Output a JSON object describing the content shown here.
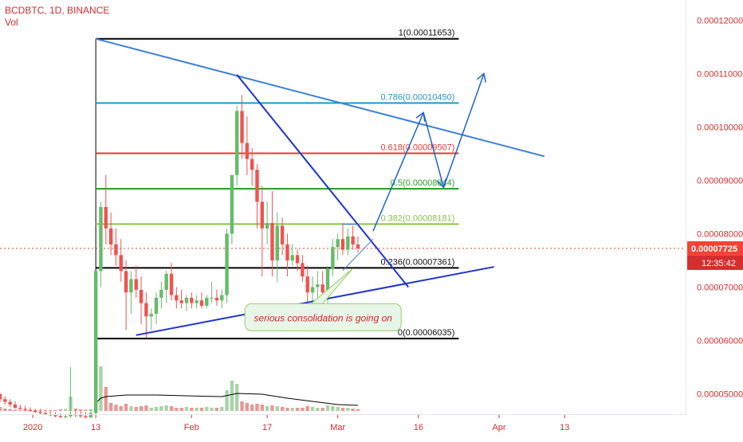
{
  "header": {
    "symbol_line": "BCDBTC, 1D, BINANCE",
    "indicator": "Vol"
  },
  "colors": {
    "up": "#8bc58b",
    "down": "#e57373",
    "upBody": "#66bb6a",
    "downBody": "#ef5350",
    "axisText": "#d32f2f",
    "trend": "#1f34c8",
    "arrow": "#1e64c8",
    "priceBox": "#f44336",
    "timerBox": "#d32f2f"
  },
  "chart_data": {
    "type": "candlestick",
    "title": "BCDBTC, 1D, BINANCE",
    "y_axis": {
      "ticks": [
        "0.00005000",
        "0.00006000",
        "0.00007000",
        "0.00008000",
        "0.00009000",
        "0.00010000",
        "0.00011000",
        "0.00012000"
      ],
      "tick_values": [
        5e-05,
        6e-05,
        7e-05,
        8e-05,
        9e-05,
        0.0001,
        0.00011,
        0.00012
      ],
      "range": [
        4.62e-05,
        0.0001238
      ]
    },
    "x_axis": {
      "ticks": [
        "2020",
        "13",
        "Feb",
        "17",
        "Mar",
        "16",
        "Apr",
        "13"
      ],
      "tick_days": [
        -0.5,
        12,
        31,
        46,
        60,
        76,
        92,
        105
      ],
      "range": [
        -7,
        129
      ]
    },
    "last_price": "0.00007725",
    "countdown": "12:35:42",
    "fib_levels": [
      {
        "label": "1(0.00011653)",
        "value": 0.00011653,
        "color": "#000000"
      },
      {
        "label": "0.786(0.00010450)",
        "value": 0.0001045,
        "color": "#2196c8"
      },
      {
        "label": "0.618(0.00009507)",
        "value": 9.507e-05,
        "color": "#e53935"
      },
      {
        "label": "0.5(0.00008844)",
        "value": 8.844e-05,
        "color": "#2e9e2e"
      },
      {
        "label": "0.382(0.00008181)",
        "value": 8.181e-05,
        "color": "#8bc34a"
      },
      {
        "label": "0.236(0.00007361)",
        "value": 7.361e-05,
        "color": "#000000"
      },
      {
        "label": "0(0.00006035)",
        "value": 6.035e-05,
        "color": "#000000"
      }
    ],
    "annotation": "serious consolidation is going on",
    "candles": [
      [
        -7,
        5.0,
        5.0,
        4.84,
        4.9
      ],
      [
        -6,
        4.9,
        4.95,
        4.8,
        4.85
      ],
      [
        -5,
        4.85,
        4.9,
        4.75,
        4.8
      ],
      [
        -4,
        4.8,
        4.86,
        4.72,
        4.74
      ],
      [
        -3,
        4.74,
        4.8,
        4.7,
        4.72
      ],
      [
        -2,
        4.72,
        4.78,
        4.68,
        4.7
      ],
      [
        -1,
        4.7,
        4.75,
        4.66,
        4.68
      ],
      [
        0,
        4.68,
        4.72,
        4.64,
        4.66
      ],
      [
        1,
        4.66,
        4.72,
        4.62,
        4.64
      ],
      [
        2,
        4.64,
        4.7,
        4.6,
        4.62
      ],
      [
        3,
        4.62,
        4.68,
        4.58,
        4.6
      ],
      [
        4,
        4.6,
        4.66,
        4.56,
        4.58
      ],
      [
        5,
        4.58,
        4.64,
        4.55,
        4.56
      ],
      [
        6,
        4.56,
        4.62,
        4.54,
        4.58
      ],
      [
        7,
        4.58,
        5.5,
        4.55,
        4.62
      ],
      [
        8,
        4.62,
        4.7,
        4.56,
        4.6
      ],
      [
        9,
        4.6,
        4.68,
        4.55,
        4.58
      ],
      [
        10,
        4.58,
        4.66,
        4.54,
        4.56
      ],
      [
        11,
        4.56,
        4.7,
        4.54,
        4.64
      ],
      [
        12,
        4.64,
        7.3,
        4.6,
        7.3
      ],
      [
        13,
        7.3,
        8.6,
        7.0,
        8.5
      ],
      [
        14,
        8.5,
        9.1,
        7.8,
        8.1
      ],
      [
        15,
        8.1,
        8.4,
        7.6,
        7.8
      ],
      [
        16,
        7.8,
        8.1,
        7.4,
        7.6
      ],
      [
        17,
        7.6,
        7.9,
        7.1,
        7.3
      ],
      [
        18,
        7.3,
        7.5,
        6.2,
        6.9
      ],
      [
        19,
        6.9,
        7.3,
        6.5,
        7.15
      ],
      [
        20,
        7.15,
        7.4,
        6.8,
        6.95
      ],
      [
        21,
        6.95,
        7.2,
        6.3,
        6.7
      ],
      [
        22,
        6.7,
        6.9,
        6.05,
        6.45
      ],
      [
        23,
        6.45,
        6.6,
        6.2,
        6.5
      ],
      [
        24,
        6.5,
        6.9,
        6.3,
        6.8
      ],
      [
        25,
        6.8,
        7.1,
        6.6,
        6.95
      ],
      [
        26,
        6.95,
        7.3,
        6.7,
        7.25
      ],
      [
        27,
        7.25,
        7.45,
        6.75,
        6.85
      ],
      [
        28,
        6.85,
        7.0,
        6.6,
        6.75
      ],
      [
        29,
        6.75,
        6.95,
        6.6,
        6.7
      ],
      [
        30,
        6.7,
        6.85,
        6.55,
        6.8
      ],
      [
        31,
        6.8,
        6.9,
        6.6,
        6.7
      ],
      [
        32,
        6.7,
        6.85,
        6.6,
        6.75
      ],
      [
        33,
        6.75,
        6.9,
        6.6,
        6.65
      ],
      [
        34,
        6.65,
        6.85,
        6.6,
        6.8
      ],
      [
        35,
        6.8,
        7.1,
        6.7,
        6.8
      ],
      [
        36,
        6.8,
        6.95,
        6.65,
        6.75
      ],
      [
        37,
        6.75,
        6.95,
        6.6,
        6.85
      ],
      [
        38,
        6.85,
        8.1,
        6.7,
        8.0
      ],
      [
        39,
        8.0,
        9.1,
        7.8,
        9.1
      ],
      [
        40,
        9.1,
        10.4,
        8.9,
        10.3
      ],
      [
        41,
        10.3,
        10.6,
        9.4,
        9.7
      ],
      [
        42,
        9.7,
        10.2,
        9.1,
        9.4
      ],
      [
        43,
        9.4,
        9.6,
        8.9,
        9.2
      ],
      [
        44,
        9.2,
        9.3,
        8.1,
        8.6
      ],
      [
        45,
        8.6,
        8.9,
        7.2,
        8.1
      ],
      [
        46,
        8.1,
        8.6,
        7.8,
        8.2
      ],
      [
        47,
        8.2,
        8.8,
        7.2,
        7.5
      ],
      [
        48,
        7.5,
        8.4,
        7.1,
        8.15
      ],
      [
        49,
        8.15,
        8.3,
        7.6,
        7.8
      ],
      [
        50,
        7.8,
        8.0,
        7.2,
        7.5
      ],
      [
        51,
        7.5,
        7.8,
        7.4,
        7.6
      ],
      [
        52,
        7.6,
        7.7,
        7.3,
        7.45
      ],
      [
        53,
        7.45,
        7.6,
        7.1,
        7.2
      ],
      [
        54,
        7.2,
        7.4,
        6.6,
        6.9
      ],
      [
        55,
        6.9,
        7.2,
        6.7,
        7.0
      ],
      [
        56,
        7.0,
        7.3,
        6.8,
        7.05
      ],
      [
        57,
        7.05,
        7.3,
        6.8,
        6.9
      ],
      [
        58,
        6.9,
        7.4,
        6.7,
        7.35
      ],
      [
        59,
        7.35,
        7.9,
        7.2,
        7.75
      ],
      [
        60,
        7.75,
        8.0,
        7.5,
        7.9
      ],
      [
        61,
        7.9,
        8.2,
        7.6,
        7.7
      ],
      [
        62,
        7.7,
        8.1,
        7.6,
        7.95
      ],
      [
        63,
        7.95,
        8.15,
        7.7,
        7.8
      ],
      [
        64,
        7.8,
        7.95,
        7.65,
        7.73
      ]
    ],
    "volumes": [
      [
        -7,
        0.25
      ],
      [
        -6,
        0.15
      ],
      [
        -5,
        0.12
      ],
      [
        -4,
        0.08
      ],
      [
        -3,
        0.06
      ],
      [
        -2,
        0.05
      ],
      [
        -1,
        0.04
      ],
      [
        0,
        0.06
      ],
      [
        1,
        0.05
      ],
      [
        2,
        0.04
      ],
      [
        3,
        0.05
      ],
      [
        4,
        0.06
      ],
      [
        5,
        0.1
      ],
      [
        6,
        0.12
      ],
      [
        7,
        0.9
      ],
      [
        8,
        0.15
      ],
      [
        9,
        0.1
      ],
      [
        10,
        0.08
      ],
      [
        11,
        0.1
      ],
      [
        12,
        3.4
      ],
      [
        13,
        2.8
      ],
      [
        14,
        1.5
      ],
      [
        15,
        0.5
      ],
      [
        16,
        0.4
      ],
      [
        17,
        0.3
      ],
      [
        18,
        0.45
      ],
      [
        19,
        0.3
      ],
      [
        20,
        0.25
      ],
      [
        21,
        0.3
      ],
      [
        22,
        0.35
      ],
      [
        23,
        0.2
      ],
      [
        24,
        0.25
      ],
      [
        25,
        0.3
      ],
      [
        26,
        0.35
      ],
      [
        27,
        0.3
      ],
      [
        28,
        0.2
      ],
      [
        29,
        0.2
      ],
      [
        30,
        0.25
      ],
      [
        31,
        0.2
      ],
      [
        32,
        0.2
      ],
      [
        33,
        0.2
      ],
      [
        34,
        0.25
      ],
      [
        35,
        0.2
      ],
      [
        36,
        0.2
      ],
      [
        37,
        0.25
      ],
      [
        38,
        1.3
      ],
      [
        39,
        1.9
      ],
      [
        40,
        1.7
      ],
      [
        41,
        0.6
      ],
      [
        42,
        0.5
      ],
      [
        43,
        0.4
      ],
      [
        44,
        0.45
      ],
      [
        45,
        0.4
      ],
      [
        46,
        0.3
      ],
      [
        47,
        0.35
      ],
      [
        48,
        0.3
      ],
      [
        49,
        0.25
      ],
      [
        50,
        0.2
      ],
      [
        51,
        0.2
      ],
      [
        52,
        0.2
      ],
      [
        53,
        0.2
      ],
      [
        54,
        0.3
      ],
      [
        55,
        0.25
      ],
      [
        56,
        0.2
      ],
      [
        57,
        0.2
      ],
      [
        58,
        0.35
      ],
      [
        59,
        0.3
      ],
      [
        60,
        0.25
      ],
      [
        61,
        0.2
      ],
      [
        62,
        0.2
      ],
      [
        63,
        0.15
      ],
      [
        64,
        0.12
      ]
    ],
    "volume_ma": [
      [
        12,
        0.5
      ],
      [
        13,
        0.8
      ],
      [
        14,
        0.9
      ],
      [
        18,
        1.0
      ],
      [
        24,
        1.0
      ],
      [
        30,
        0.95
      ],
      [
        37,
        0.9
      ],
      [
        40,
        1.1
      ],
      [
        45,
        1.05
      ],
      [
        50,
        0.8
      ],
      [
        55,
        0.6
      ],
      [
        60,
        0.4
      ],
      [
        64,
        0.35
      ]
    ],
    "drawings": {
      "trend_lines": [
        {
          "name": "upper-resistance-line",
          "color": "#3f7fd6",
          "width": 2,
          "from": [
            12,
            11.653
          ],
          "to": [
            101,
            9.45
          ]
        },
        {
          "name": "descending-line",
          "color": "#1f34c8",
          "width": 2,
          "from": [
            40,
            10.98
          ],
          "to": [
            74,
            7.0
          ]
        },
        {
          "name": "ascending-support-line",
          "color": "#1f34c8",
          "width": 2,
          "from": [
            20,
            6.1
          ],
          "to": [
            91,
            7.38
          ]
        },
        {
          "name": "triangle-top-line",
          "color": "#3f7fd6",
          "width": 1,
          "from": [
            61,
            8.18
          ],
          "to": [
            64,
            8.18
          ]
        },
        {
          "name": "triangle-lower-line",
          "color": "#3f7fd6",
          "width": 1,
          "from": [
            61,
            7.31
          ],
          "to": [
            67,
            7.9
          ]
        }
      ],
      "projection_path": [
        [
          67,
          8.05
        ],
        [
          77,
          10.27
        ],
        [
          81,
          8.87
        ],
        [
          89,
          11.0
        ]
      ],
      "vertical_marker_day": 12
    }
  }
}
